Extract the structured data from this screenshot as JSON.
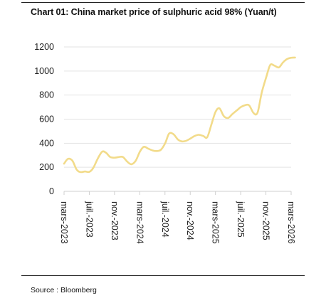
{
  "page": {
    "title": "Chart 01: China market price of sulphuric acid 98% (Yuan/t)",
    "source": "Source : Bloomberg"
  },
  "chart_data": {
    "type": "line",
    "title": "Chart 01: China market price of sulphuric acid 98% (Yuan/t)",
    "xlabel": "",
    "ylabel": "",
    "ylim": [
      0,
      1200
    ],
    "yticks": [
      0,
      200,
      400,
      600,
      800,
      1000,
      1200
    ],
    "grid": true,
    "legend": "none",
    "x_tick_labels": [
      "mars-2023",
      "juil.-2023",
      "nov.-2023",
      "mars-2024",
      "juil.-2024",
      "nov.-2024",
      "mars-2025",
      "juil.-2025",
      "nov.-2025",
      "mars-2026"
    ],
    "line_color": "#F2DB8A",
    "series": [
      {
        "x": [
          "2023-03-01",
          "2023-03-20",
          "2023-04-10",
          "2023-05-01",
          "2023-05-20",
          "2023-06-10",
          "2023-07-01",
          "2023-07-20",
          "2023-08-10",
          "2023-09-01",
          "2023-09-20",
          "2023-10-10",
          "2023-11-01",
          "2023-11-20",
          "2023-12-10",
          "2024-01-01",
          "2024-01-20",
          "2024-02-10",
          "2024-03-01",
          "2024-03-20",
          "2024-04-10",
          "2024-05-01",
          "2024-05-20",
          "2024-06-10",
          "2024-07-01",
          "2024-07-20",
          "2024-08-10",
          "2024-09-01",
          "2024-09-20",
          "2024-10-10",
          "2024-11-01",
          "2024-11-20",
          "2024-12-10",
          "2025-01-01",
          "2025-01-20",
          "2025-02-10",
          "2025-03-01",
          "2025-03-20",
          "2025-04-10",
          "2025-05-01",
          "2025-05-20",
          "2025-06-10",
          "2025-07-01",
          "2025-07-20",
          "2025-08-10",
          "2025-09-01",
          "2025-09-20",
          "2025-10-10",
          "2025-11-01",
          "2025-11-20",
          "2025-12-10",
          "2026-01-01",
          "2026-01-20",
          "2026-02-10",
          "2026-03-01",
          "2026-03-20"
        ],
        "y": [
          230,
          270,
          255,
          180,
          160,
          165,
          162,
          195,
          270,
          330,
          320,
          285,
          280,
          285,
          285,
          245,
          225,
          255,
          330,
          370,
          355,
          340,
          335,
          345,
          400,
          480,
          475,
          430,
          415,
          420,
          440,
          460,
          470,
          460,
          450,
          560,
          660,
          690,
          625,
          610,
          640,
          670,
          700,
          715,
          715,
          650,
          655,
          820,
          950,
          1050,
          1045,
          1030,
          1070,
          1100,
          1110,
          1112
        ]
      }
    ]
  }
}
